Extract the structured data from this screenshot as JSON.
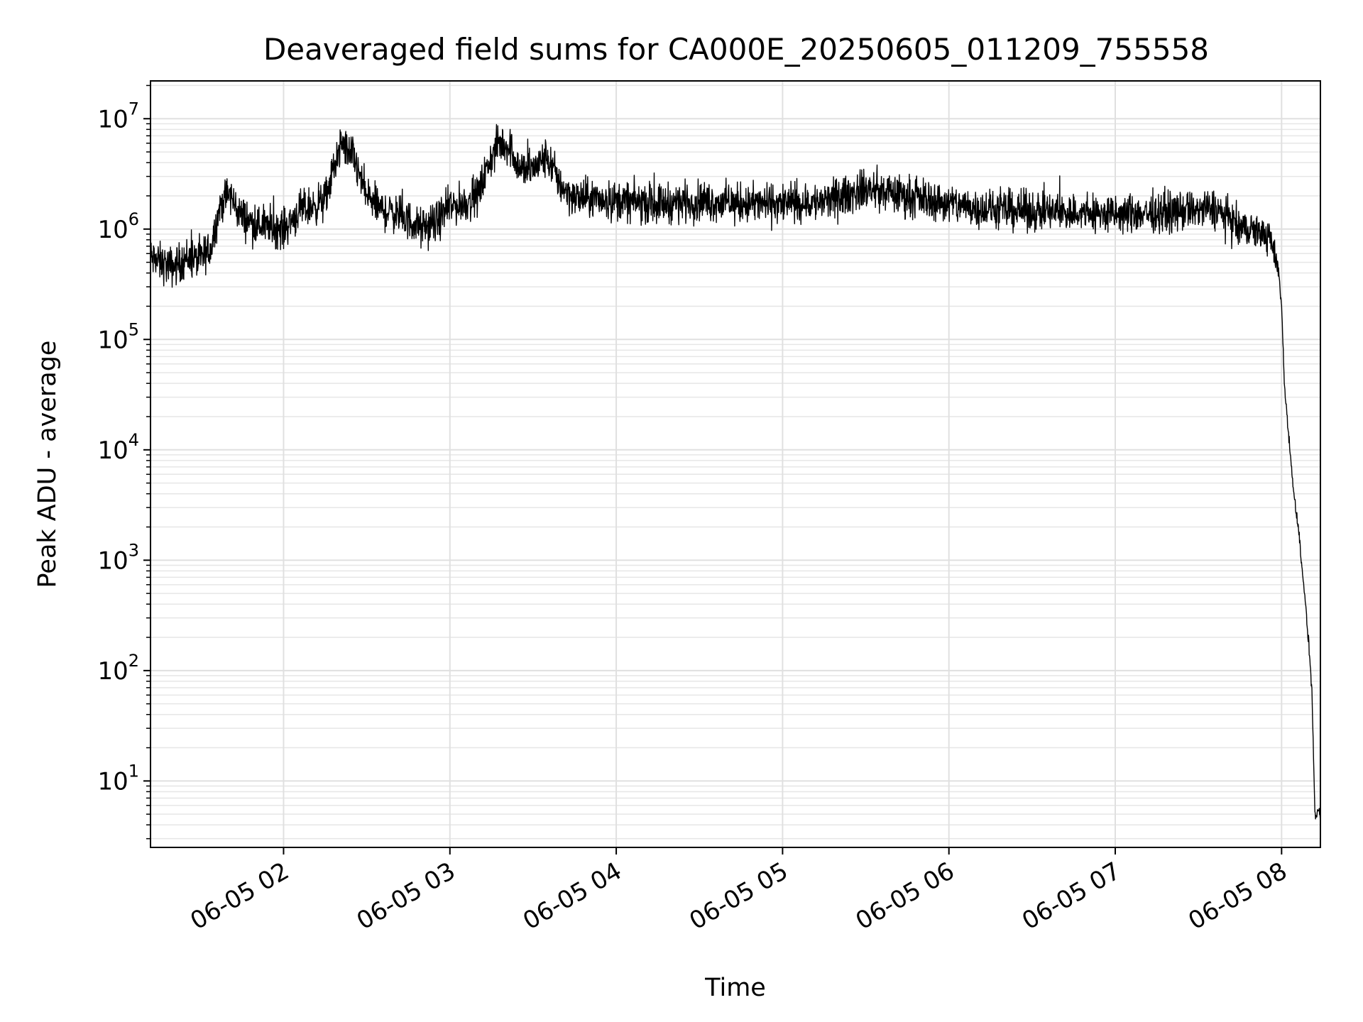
{
  "chart_data": {
    "type": "line",
    "title": "Deaveraged field sums for CA000E_20250605_011209_755558",
    "xlabel": "Time",
    "ylabel": "Peak ADU - average",
    "yscale": "log",
    "grid": true,
    "x_ticks": [
      "06-05 02",
      "06-05 03",
      "06-05 04",
      "06-05 05",
      "06-05 06",
      "06-05 07",
      "06-05 08"
    ],
    "y_ticks": [
      {
        "base": "10",
        "exp": "1",
        "value": 10
      },
      {
        "base": "10",
        "exp": "2",
        "value": 100
      },
      {
        "base": "10",
        "exp": "3",
        "value": 1000
      },
      {
        "base": "10",
        "exp": "4",
        "value": 10000
      },
      {
        "base": "10",
        "exp": "5",
        "value": 100000
      },
      {
        "base": "10",
        "exp": "6",
        "value": 1000000
      },
      {
        "base": "10",
        "exp": "7",
        "value": 10000000
      }
    ],
    "xlim": [
      "2025-06-05 01:12",
      "2025-06-05 08:14"
    ],
    "ylim": [
      2.5,
      22000000
    ],
    "series": [
      {
        "color": "#000000",
        "x": [
          "2025-06-05 01:12",
          "2025-06-05 01:15",
          "2025-06-05 01:20",
          "2025-06-05 01:25",
          "2025-06-05 01:30",
          "2025-06-05 01:34",
          "2025-06-05 01:37",
          "2025-06-05 01:40",
          "2025-06-05 01:45",
          "2025-06-05 01:50",
          "2025-06-05 01:55",
          "2025-06-05 02:00",
          "2025-06-05 02:05",
          "2025-06-05 02:10",
          "2025-06-05 02:15",
          "2025-06-05 02:18",
          "2025-06-05 02:21",
          "2025-06-05 02:25",
          "2025-06-05 02:30",
          "2025-06-05 02:35",
          "2025-06-05 02:40",
          "2025-06-05 02:45",
          "2025-06-05 02:50",
          "2025-06-05 02:55",
          "2025-06-05 03:00",
          "2025-06-05 03:05",
          "2025-06-05 03:10",
          "2025-06-05 03:15",
          "2025-06-05 03:18",
          "2025-06-05 03:22",
          "2025-06-05 03:25",
          "2025-06-05 03:30",
          "2025-06-05 03:35",
          "2025-06-05 03:40",
          "2025-06-05 03:45",
          "2025-06-05 03:50",
          "2025-06-05 04:00",
          "2025-06-05 04:15",
          "2025-06-05 04:30",
          "2025-06-05 04:45",
          "2025-06-05 05:00",
          "2025-06-05 05:15",
          "2025-06-05 05:30",
          "2025-06-05 05:45",
          "2025-06-05 06:00",
          "2025-06-05 06:15",
          "2025-06-05 06:30",
          "2025-06-05 06:45",
          "2025-06-05 07:00",
          "2025-06-05 07:15",
          "2025-06-05 07:30",
          "2025-06-05 07:37",
          "2025-06-05 07:45",
          "2025-06-05 07:52",
          "2025-06-05 07:56",
          "2025-06-05 07:59",
          "2025-06-05 08:00",
          "2025-06-05 08:01",
          "2025-06-05 08:02",
          "2025-06-05 08:04",
          "2025-06-05 08:06",
          "2025-06-05 08:08",
          "2025-06-05 08:10",
          "2025-06-05 08:11",
          "2025-06-05 08:12",
          "2025-06-05 08:13",
          "2025-06-05 08:14"
        ],
        "y": [
          550000,
          500000,
          450000,
          550000,
          520000,
          700000,
          1600000,
          2100000,
          1300000,
          1100000,
          1050000,
          1000000,
          1400000,
          1600000,
          1800000,
          3500000,
          6000000,
          4500000,
          2000000,
          1500000,
          1400000,
          1200000,
          1000000,
          1150000,
          1600000,
          1700000,
          2000000,
          4500000,
          6000000,
          5500000,
          3500000,
          3500000,
          4500000,
          2500000,
          1900000,
          1900000,
          1800000,
          1700000,
          1800000,
          1700000,
          1700000,
          1750000,
          2300000,
          2000000,
          1700000,
          1500000,
          1450000,
          1400000,
          1350000,
          1400000,
          1500000,
          1500000,
          1000000,
          950000,
          800000,
          400000,
          200000,
          40000,
          20000,
          5000,
          2000,
          600,
          150,
          60,
          5,
          5,
          5
        ]
      }
    ]
  }
}
